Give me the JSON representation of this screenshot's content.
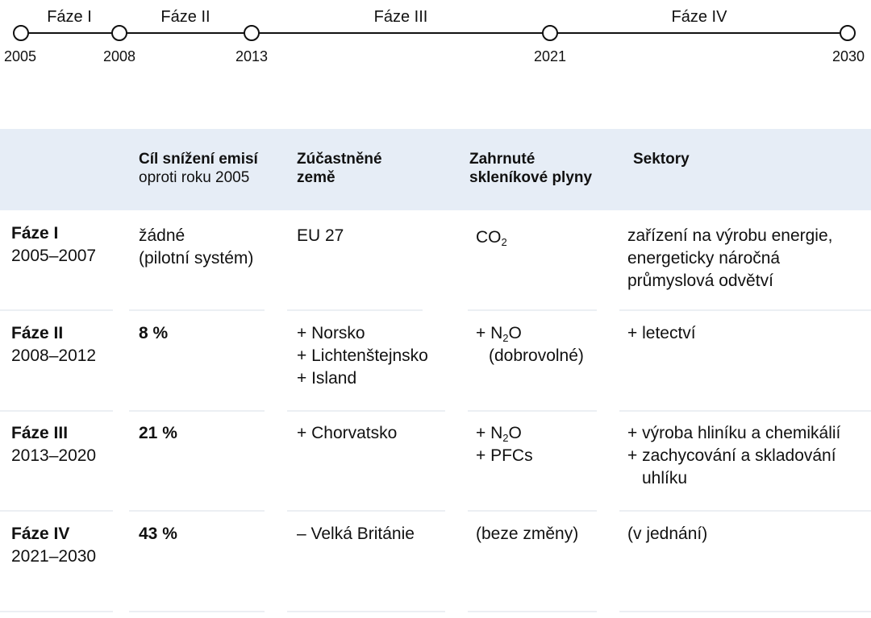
{
  "timeline": {
    "years": [
      "2005",
      "2008",
      "2013",
      "2021",
      "2030"
    ],
    "phases": [
      "Fáze I",
      "Fáze II",
      "Fáze III",
      "Fáze IV"
    ]
  },
  "header": {
    "col_target_bold": "Cíl snížení emisí",
    "col_target_normal": "oproti roku 2005",
    "col_countries_line1": "Zúčastněné",
    "col_countries_line2": "země",
    "col_gases_line1": "Zahrnuté",
    "col_gases_line2": "skleníkové plyny",
    "col_sectors": "Sektory"
  },
  "rows": [
    {
      "phase": "Fáze I",
      "years": "2005–2007",
      "target": [
        "žádné",
        "(pilotní systém)"
      ],
      "countries": [
        "EU 27"
      ],
      "gas_prefix": "CO",
      "gas_sub": "2",
      "sectors": [
        "zařízení na výrobu energie,",
        "energeticky náročná",
        "průmyslová odvětví"
      ]
    },
    {
      "phase": "Fáze II",
      "years": "2008–2012",
      "target": [
        "8 %"
      ],
      "countries": [
        "+ Norsko",
        "+ Lichtenštejnsko",
        "+ Island"
      ],
      "gas_prefix": "+ N",
      "gas_sub": "2",
      "gas_suffix": "O",
      "gas_note": "(dobrovolné)",
      "sectors": [
        "+ letectví"
      ]
    },
    {
      "phase": "Fáze III",
      "years": "2013–2020",
      "target": [
        "21 %"
      ],
      "countries": [
        "+ Chorvatsko"
      ],
      "gas_prefix": "+ N",
      "gas_sub": "2",
      "gas_suffix": "O",
      "gas_extra": "+ PFCs",
      "sectors": [
        "+ výroba hliníku a chemikálií",
        "+ zachycování a skladování",
        "uhlíku"
      ]
    },
    {
      "phase": "Fáze IV",
      "years": "2021–2030",
      "target": [
        "43 %"
      ],
      "countries": [
        "– Velká Británie"
      ],
      "gas_text": "(beze změny)",
      "sectors": [
        "(v jednání)"
      ]
    }
  ]
}
